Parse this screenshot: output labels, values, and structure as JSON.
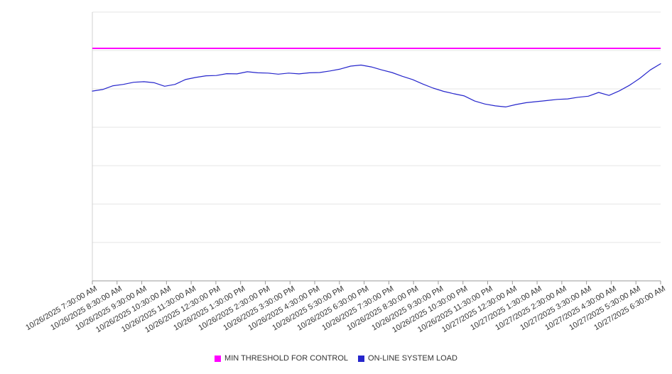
{
  "chart_data": {
    "type": "line",
    "title": "",
    "xlabel": "",
    "ylabel": "",
    "ylim": [
      0,
      100
    ],
    "grid": true,
    "grid_intervals": 7,
    "y_axis_labels_visible": false,
    "legend_position": "bottom",
    "x_labels": [
      "10/26/2025 7:30:00 AM",
      "10/26/2025 8:30:00 AM",
      "10/26/2025 9:30:00 AM",
      "10/26/2025 10:30:00 AM",
      "10/26/2025 11:30:00 AM",
      "10/26/2025 12:30:00 PM",
      "10/26/2025 1:30:00 PM",
      "10/26/2025 2:30:00 PM",
      "10/26/2025 3:30:00 PM",
      "10/26/2025 4:30:00 PM",
      "10/26/2025 5:30:00 PM",
      "10/26/2025 6:30:00 PM",
      "10/26/2025 7:30:00 PM",
      "10/26/2025 8:30:00 PM",
      "10/26/2025 9:30:00 PM",
      "10/26/2025 10:30:00 PM",
      "10/26/2025 11:30:00 PM",
      "10/27/2025 12:30:00 AM",
      "10/27/2025 1:30:00 AM",
      "10/27/2025 2:30:00 AM",
      "10/27/2025 3:30:00 AM",
      "10/27/2025 4:30:00 AM",
      "10/27/2025 5:30:00 AM",
      "10/27/2025 6:30:00 AM"
    ],
    "series": [
      {
        "name": "MIN THRESHOLD FOR CONTROL",
        "color": "#ff00ff",
        "style": "threshold",
        "value": 86.5
      },
      {
        "name": "ON-LINE SYSTEM LOAD",
        "color": "#2626cc",
        "style": "line",
        "values": [
          70.6,
          71.2,
          72.6,
          73.1,
          73.9,
          74.1,
          73.7,
          72.4,
          73.1,
          74.9,
          75.7,
          76.3,
          76.4,
          77.1,
          77.0,
          77.8,
          77.4,
          77.3,
          76.9,
          77.3,
          77.0,
          77.4,
          77.5,
          78.1,
          78.8,
          79.9,
          80.3,
          79.6,
          78.5,
          77.5,
          76.1,
          74.9,
          73.2,
          71.7,
          70.5,
          69.6,
          68.8,
          66.9,
          65.8,
          65.1,
          64.7,
          65.6,
          66.3,
          66.7,
          67.1,
          67.5,
          67.7,
          68.3,
          68.7,
          70.1,
          69.0,
          70.7,
          72.8,
          75.4,
          78.5,
          80.8
        ]
      }
    ]
  },
  "legend": {
    "items": [
      {
        "label": "MIN THRESHOLD FOR CONTROL",
        "color": "#ff00ff"
      },
      {
        "label": "ON-LINE SYSTEM LOAD",
        "color": "#2626cc"
      }
    ]
  },
  "colors": {
    "gridline": "#e6e6e6",
    "axis": "#999999",
    "y_axis": "#d0d0d0",
    "label_text": "#333333"
  }
}
